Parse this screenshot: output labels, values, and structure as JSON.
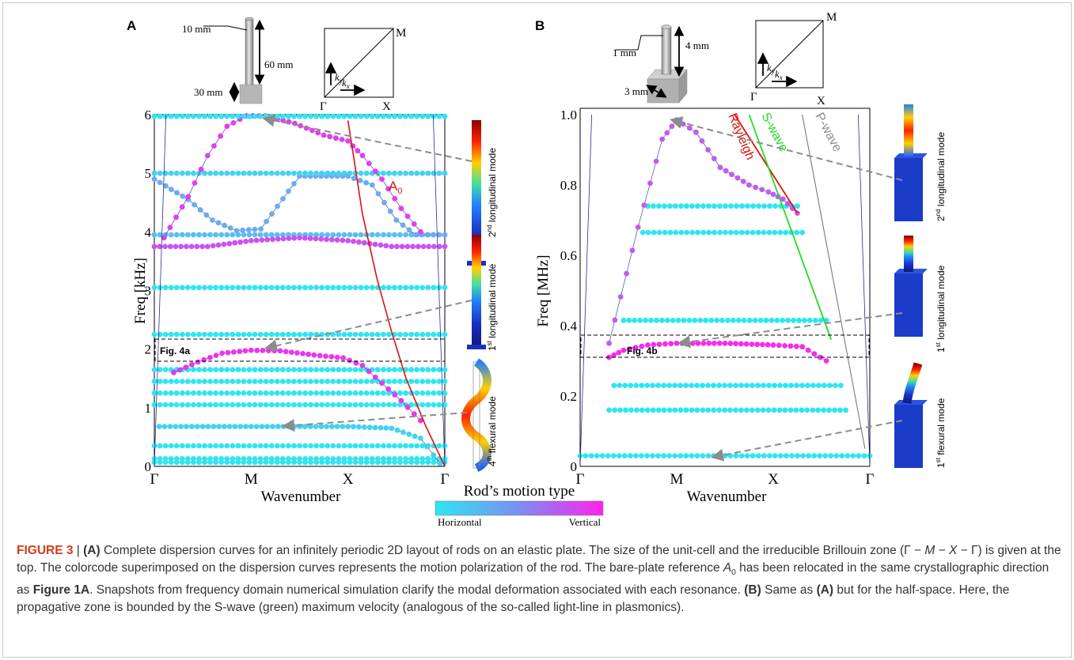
{
  "panel_a": {
    "label": "A",
    "schematic": {
      "rod_diameter": "10 mm",
      "rod_height": "60 mm",
      "base_height": "30 mm"
    },
    "bz": {
      "gamma": "Γ",
      "x": "X",
      "m": "M",
      "ky": "k",
      "ky_sub": "y",
      "kx": "k",
      "kx_sub": "x"
    },
    "y_axis_label": "Freq [kHz]",
    "x_axis_label": "Wavenumber",
    "ref_curve_label": "A",
    "ref_curve_sub": "0",
    "box_label": "Fig. 4a",
    "mode_labels": [
      {
        "sup": "nd",
        "pre": "2",
        "text": " longitudinal mode"
      },
      {
        "sup": "st",
        "pre": "1",
        "text": " longitudinal mode"
      },
      {
        "sup": "th",
        "pre": "4",
        "text": " flexural mode"
      }
    ]
  },
  "panel_b": {
    "label": "B",
    "schematic": {
      "rod_diameter": "1 mm",
      "rod_height": "4 mm",
      "base_width": "3 mm"
    },
    "bz": {
      "gamma": "Γ",
      "x": "X",
      "m": "M",
      "ky": "k",
      "ky_sub": "y",
      "kx": "k",
      "kx_sub": "x"
    },
    "y_axis_label": "Freq [MHz]",
    "x_axis_label": "Wavenumber",
    "line_labels": {
      "rayleigh": "Rayleigh",
      "s_wave": "S-wave",
      "p_wave": "P-wave"
    },
    "box_label": "Fig. 4b",
    "mode_labels": [
      {
        "sup": "nd",
        "pre": "2",
        "text": " longitudinal mode"
      },
      {
        "sup": "st",
        "pre": "1",
        "text": " longitudinal mode"
      },
      {
        "sup": "st",
        "pre": "1",
        "text": " flexural mode"
      }
    ]
  },
  "colorbar": {
    "title": "Rod’s motion type",
    "left_label": "Horizontal",
    "right_label": "Vertical",
    "colors": {
      "horizontal": "#2ee6f2",
      "vertical": "#ff22ee"
    }
  },
  "colors": {
    "a0": "#e01010",
    "rayleigh": "#e01010",
    "s_wave": "#22dd22",
    "p_wave": "#6e6e6e",
    "branch": "#1a1a9a",
    "arrow": "#8c8c8c"
  },
  "caption": {
    "fig_label": "FIGURE 3",
    "sep": " | ",
    "a_tag": "(A)",
    "t1": " Complete dispersion curves for an infinitely periodic 2D layout of rods on an elastic plate. The size of the unit-cell and the irreducible Brillouin zone (Γ − ",
    "m": "M",
    "t2": " − ",
    "x": "X",
    "t3": " − Γ) is given at the top. The colorcode superimposed on the dispersion curves represents the motion polarization of the rod. The bare-plate reference ",
    "a0": "A",
    "a0_sub": "0",
    "t4": " has been relocated in the same crystallographic direction as ",
    "fig1a": "Figure 1A",
    "t5": ". Snapshots from frequency domain numerical simulation clarify the modal deformation associated with each resonance. ",
    "b_tag": "(B)",
    "t6": " Same as ",
    "a_tag2": "(A)",
    "t7": " but for the half-space. Here, the propagative zone is bounded by the S-wave (green) maximum velocity (analogous of the so-called light-line in plasmonics)."
  },
  "chart_data": [
    {
      "type": "scatter",
      "title": "",
      "xlabel": "Wavenumber",
      "ylabel": "Freq [kHz]",
      "x_ticks": [
        "Γ",
        "M",
        "X",
        "Γ"
      ],
      "ylim": [
        0,
        6
      ],
      "y_ticks": [
        0,
        1,
        2,
        3,
        4,
        5,
        6
      ],
      "note": "x is normalized path position along Γ–M–X–Γ (0 → 3); color = rod motion (0 horizontal … 1 vertical)",
      "series": [
        {
          "x": [
            0,
            3
          ],
          "y": [
            0.07,
            0.07
          ],
          "motion": 0
        },
        {
          "x": [
            0,
            3
          ],
          "y": [
            0.13,
            0.13
          ],
          "motion": 0
        },
        {
          "x": [
            0,
            3
          ],
          "y": [
            0.35,
            0.35
          ],
          "motion": 0
        },
        {
          "x": [
            0.05,
            0.5,
            1,
            1.5,
            2,
            2.45,
            2.75,
            2.95
          ],
          "y": [
            0.68,
            0.68,
            0.68,
            0.68,
            0.68,
            0.65,
            0.48,
            0.05
          ],
          "motion": 0.1
        },
        {
          "x": [
            0,
            3
          ],
          "y": [
            1.05,
            1.05
          ],
          "motion": 0
        },
        {
          "x": [
            0,
            3
          ],
          "y": [
            1.25,
            1.25
          ],
          "motion": 0
        },
        {
          "x": [
            0,
            3
          ],
          "y": [
            1.45,
            1.45
          ],
          "motion": 0
        },
        {
          "x": [
            0,
            3
          ],
          "y": [
            1.65,
            1.65
          ],
          "motion": 0
        },
        {
          "x": [
            0.2,
            0.45,
            0.7,
            1,
            1.3,
            1.65,
            1.95,
            2.15,
            2.35,
            2.55,
            2.75
          ],
          "y": [
            1.6,
            1.78,
            1.93,
            1.98,
            1.97,
            1.9,
            1.85,
            1.72,
            1.42,
            1.12,
            0.78
          ],
          "motion": 0.9
        },
        {
          "x": [
            0,
            3
          ],
          "y": [
            2.25,
            2.25
          ],
          "motion": 0
        },
        {
          "x": [
            0,
            3
          ],
          "y": [
            3.05,
            3.05
          ],
          "motion": 0
        },
        {
          "x": [
            0,
            3
          ],
          "y": [
            3.95,
            3.95
          ],
          "motion": 0.2
        },
        {
          "x": [
            0,
            0.55,
            1,
            1.5,
            2,
            2.45,
            3
          ],
          "y": [
            3.75,
            3.75,
            3.85,
            3.9,
            3.85,
            3.75,
            3.75
          ],
          "motion": 0.75
        },
        {
          "x": [
            0,
            0.35,
            0.6,
            0.85,
            1.1,
            1.5,
            2,
            2.25,
            2.5,
            2.7,
            3
          ],
          "y": [
            4.9,
            4.55,
            4.2,
            4.02,
            4.05,
            4.95,
            4.95,
            4.8,
            4.2,
            3.95,
            3.95
          ],
          "motion": 0.3
        },
        {
          "x": [
            0,
            3
          ],
          "y": [
            5.0,
            5.0
          ],
          "motion": 0.1
        },
        {
          "x": [
            0.1,
            0.35,
            0.55,
            0.75,
            0.95,
            1.15,
            1.45,
            1.75,
            2.0,
            2.15,
            2.35,
            2.55,
            2.75
          ],
          "y": [
            3.9,
            4.6,
            5.3,
            5.8,
            5.98,
            5.98,
            5.85,
            5.65,
            5.55,
            5.3,
            4.9,
            4.4,
            4.0
          ],
          "motion": 0.85
        },
        {
          "x": [
            0,
            3
          ],
          "y": [
            5.97,
            5.97
          ],
          "motion": 0
        }
      ],
      "reference_curve": {
        "name": "A0",
        "x": [
          2.0,
          2.15,
          2.3,
          2.45,
          2.6,
          2.8,
          3.0
        ],
        "y": [
          5.9,
          4.3,
          3.2,
          2.3,
          1.5,
          0.7,
          0
        ]
      }
    },
    {
      "type": "scatter",
      "title": "",
      "xlabel": "Wavenumber",
      "ylabel": "Freq [MHz]",
      "x_ticks": [
        "Γ",
        "M",
        "X",
        "Γ"
      ],
      "ylim": [
        0,
        1.0
      ],
      "y_ticks": [
        0,
        0.2,
        0.4,
        0.6,
        0.8,
        1.0
      ],
      "series": [
        {
          "x": [
            0,
            3
          ],
          "y": [
            0.03,
            0.03
          ],
          "motion": 0
        },
        {
          "x": [
            0.3,
            2.75
          ],
          "y": [
            0.16,
            0.16
          ],
          "motion": 0
        },
        {
          "x": [
            0.35,
            2.7
          ],
          "y": [
            0.23,
            0.23
          ],
          "motion": 0
        },
        {
          "x": [
            0.3,
            0.45,
            0.7,
            1,
            1.5,
            2,
            2.3,
            2.55
          ],
          "y": [
            0.31,
            0.33,
            0.345,
            0.35,
            0.35,
            0.345,
            0.34,
            0.3
          ],
          "motion": 0.95
        },
        {
          "x": [
            0.45,
            2.55
          ],
          "y": [
            0.415,
            0.415
          ],
          "motion": 0
        },
        {
          "x": [
            0.65,
            2.3
          ],
          "y": [
            0.665,
            0.665
          ],
          "motion": 0
        },
        {
          "x": [
            0.7,
            2.25
          ],
          "y": [
            0.74,
            0.74
          ],
          "motion": 0
        },
        {
          "x": [
            0.3,
            0.6,
            0.85,
            1.0,
            1.2,
            1.45,
            1.75,
            1.95,
            2.1,
            2.25
          ],
          "y": [
            0.35,
            0.68,
            0.93,
            0.985,
            0.95,
            0.85,
            0.8,
            0.78,
            0.76,
            0.72
          ],
          "motion": 0.7
        }
      ],
      "reference_lines": [
        {
          "name": "Rayleigh",
          "x": [
            1.6,
            2.25
          ],
          "y": [
            1.0,
            0.72
          ]
        },
        {
          "name": "S-wave",
          "x": [
            1.75,
            2.6
          ],
          "y": [
            1.0,
            0.36
          ]
        },
        {
          "name": "P-wave",
          "x": [
            2.3,
            2.95
          ],
          "y": [
            1.0,
            0.05
          ]
        }
      ]
    }
  ]
}
